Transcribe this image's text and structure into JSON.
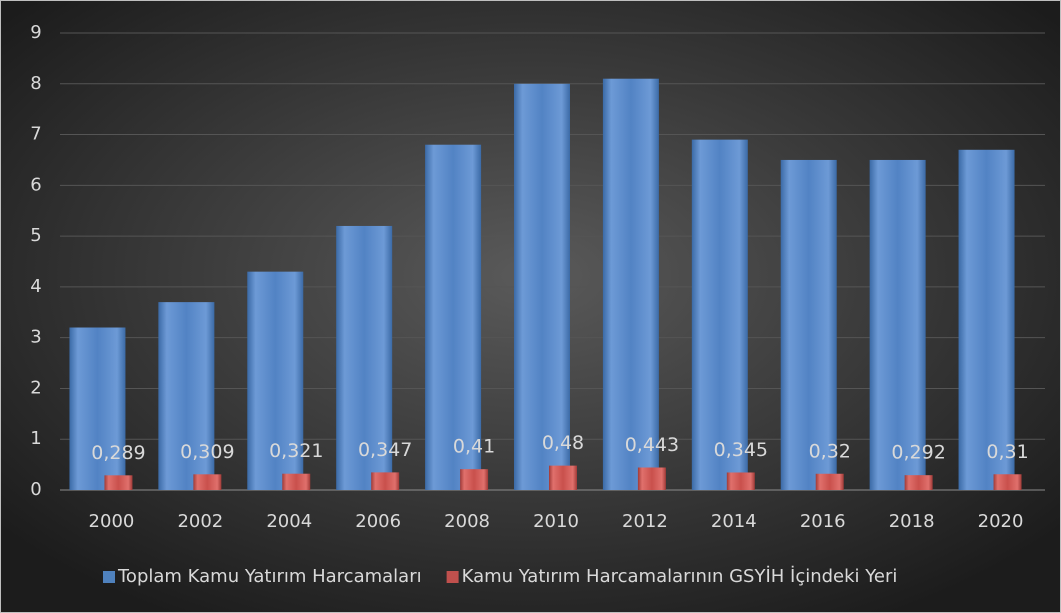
{
  "chart_data": {
    "type": "bar",
    "categories": [
      "2000",
      "2002",
      "2004",
      "2006",
      "2008",
      "2010",
      "2012",
      "2014",
      "2016",
      "2018",
      "2020"
    ],
    "series": [
      {
        "name": "Toplam Kamu Yatırım Harcamaları",
        "color": "#4f81bd",
        "values": [
          3.2,
          3.7,
          4.3,
          5.2,
          6.8,
          8.0,
          8.1,
          6.9,
          6.5,
          6.5,
          6.7
        ]
      },
      {
        "name": "Kamu Yatırım Harcamalarının GSYİH İçindeki Yeri",
        "color": "#c0504d",
        "values": [
          0.289,
          0.309,
          0.321,
          0.347,
          0.41,
          0.48,
          0.443,
          0.345,
          0.32,
          0.292,
          0.31
        ],
        "value_labels": [
          "0,289",
          "0,309",
          "0,321",
          "0,347",
          "0,41",
          "0,48",
          "0,443",
          "0,345",
          "0,32",
          "0,292",
          "0,31"
        ]
      }
    ],
    "ylim": [
      0,
      9
    ],
    "yticks": [
      0,
      1,
      2,
      3,
      4,
      5,
      6,
      7,
      8,
      9
    ],
    "grid": true,
    "legend": "bottom"
  }
}
